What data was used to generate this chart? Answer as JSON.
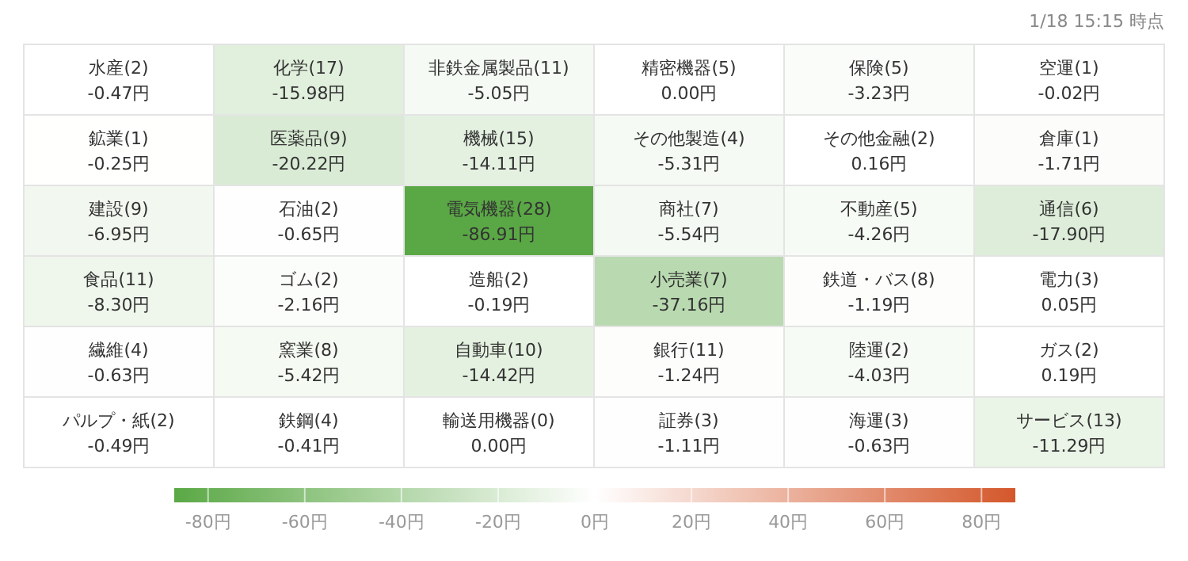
{
  "chart_data": {
    "type": "heatmap",
    "annotations": [
      "1/18 15:15 時点"
    ],
    "categories": [
      null,
      null,
      null,
      null,
      null,
      null
    ],
    "y_categories": [
      null,
      null,
      null,
      null,
      null,
      null
    ],
    "cells": [
      [
        -0.47,
        -15.98,
        -5.05,
        0.0,
        -3.23,
        -0.02
      ],
      [
        -0.25,
        -20.22,
        -14.11,
        -5.31,
        0.16,
        -1.71
      ],
      [
        -6.95,
        -0.65,
        -86.91,
        -5.54,
        -4.26,
        -17.9
      ],
      [
        -8.3,
        -2.16,
        -0.19,
        -37.16,
        -1.19,
        0.05
      ],
      [
        -0.63,
        -5.42,
        -14.42,
        -1.24,
        -4.03,
        0.19
      ],
      [
        -0.49,
        -0.41,
        0.0,
        -1.11,
        -0.63,
        -11.29
      ]
    ],
    "cell_labels": [
      [
        "水産(2)\n-0.47円",
        "化学(17)\n-15.98円",
        "非鉄金属製品(11)\n-5.05円",
        "精密機器(5)\n0.00円",
        "保険(5)\n-3.23円",
        "空運(1)\n-0.02円"
      ],
      [
        "鉱業(1)\n-0.25円",
        "医薬品(9)\n-20.22円",
        "機械(15)\n-14.11円",
        "その他製造(4)\n-5.31円",
        "その他金融(2)\n0.16円",
        "倉庫(1)\n-1.71円"
      ],
      [
        "建設(9)\n-6.95円",
        "石油(2)\n-0.65円",
        "電気機器(28)\n-86.91円",
        "商社(7)\n-5.54円",
        "不動産(5)\n-4.26円",
        "通信(6)\n-17.90円"
      ],
      [
        "食品(11)\n-8.30円",
        "ゴム(2)\n-2.16円",
        "造船(2)\n-0.19円",
        "小売業(7)\n-37.16円",
        "鉄道・バス(8)\n-1.19円",
        "電力(3)\n0.05円"
      ],
      [
        "繊維(4)\n-0.63円",
        "窯業(8)\n-5.42円",
        "自動車(10)\n-14.42円",
        "銀行(11)\n-1.24円",
        "陸運(2)\n-4.03円",
        "ガス(2)\n0.19円"
      ],
      [
        "パルプ・紙(2)\n-0.49円",
        "鉄鋼(4)\n-0.41円",
        "輸送用機器(0)\n0.00円",
        "証券(3)\n-1.11円",
        "海運(3)\n-0.63円",
        "サービス(13)\n-11.29円"
      ]
    ],
    "clim": [
      -87,
      87
    ],
    "cticks": [
      {
        "value": -80,
        "label": "-80円"
      },
      {
        "value": -60,
        "label": "-60円"
      },
      {
        "value": -40,
        "label": "-40円"
      },
      {
        "value": -20,
        "label": "-20円"
      },
      {
        "value": 0,
        "label": "0円"
      },
      {
        "value": 20,
        "label": "20円"
      },
      {
        "value": 40,
        "label": "40円"
      },
      {
        "value": 60,
        "label": "60円"
      },
      {
        "value": 80,
        "label": "80円"
      }
    ]
  }
}
